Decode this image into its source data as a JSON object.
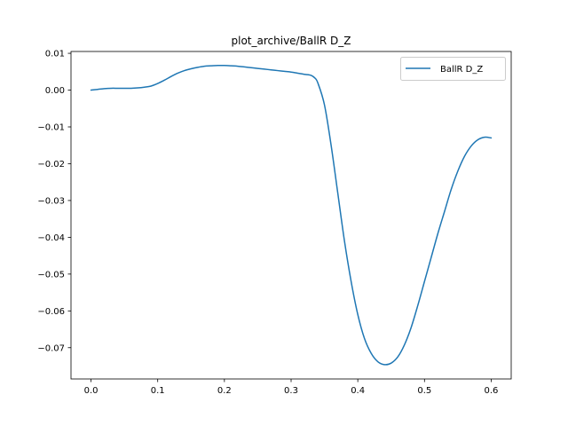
{
  "chart_data": {
    "type": "line",
    "title": "plot_archive/BallR D_Z",
    "xlabel": "",
    "ylabel": "",
    "xlim": [
      -0.03,
      0.63
    ],
    "ylim": [
      -0.0785,
      0.0105
    ],
    "x_ticks": [
      0.0,
      0.1,
      0.2,
      0.3,
      0.4,
      0.5,
      0.6
    ],
    "x_tick_labels": [
      "0.0",
      "0.1",
      "0.2",
      "0.3",
      "0.4",
      "0.5",
      "0.6"
    ],
    "y_ticks": [
      0.01,
      0.0,
      -0.01,
      -0.02,
      -0.03,
      -0.04,
      -0.05,
      -0.06,
      -0.07
    ],
    "y_tick_labels": [
      "0.01",
      "0.00",
      "−0.01",
      "−0.02",
      "−0.03",
      "−0.04",
      "−0.05",
      "−0.06",
      "−0.07"
    ],
    "grid": false,
    "legend": {
      "position": "top-right",
      "entries": [
        "BallR D_Z"
      ]
    },
    "series": [
      {
        "name": "BallR D_Z",
        "color": "#1f77b4",
        "x": [
          0.0,
          0.01,
          0.02,
          0.03,
          0.04,
          0.05,
          0.06,
          0.07,
          0.08,
          0.09,
          0.1,
          0.11,
          0.12,
          0.13,
          0.14,
          0.15,
          0.16,
          0.17,
          0.18,
          0.19,
          0.2,
          0.21,
          0.22,
          0.23,
          0.24,
          0.25,
          0.26,
          0.27,
          0.28,
          0.29,
          0.3,
          0.31,
          0.32,
          0.325,
          0.33,
          0.335,
          0.34,
          0.35,
          0.36,
          0.37,
          0.38,
          0.39,
          0.4,
          0.41,
          0.42,
          0.43,
          0.44,
          0.45,
          0.46,
          0.47,
          0.48,
          0.49,
          0.5,
          0.51,
          0.52,
          0.53,
          0.54,
          0.55,
          0.56,
          0.57,
          0.58,
          0.59,
          0.6
        ],
        "y": [
          0.0,
          0.0002,
          0.0004,
          0.0005,
          0.0005,
          0.0005,
          0.0005,
          0.0006,
          0.0008,
          0.0011,
          0.0018,
          0.0027,
          0.0037,
          0.0046,
          0.0053,
          0.0058,
          0.0062,
          0.0065,
          0.0066,
          0.0067,
          0.0067,
          0.0066,
          0.0065,
          0.0063,
          0.0061,
          0.0059,
          0.0057,
          0.0055,
          0.0053,
          0.0051,
          0.0049,
          0.0046,
          0.0043,
          0.0042,
          0.004,
          0.0034,
          0.002,
          -0.004,
          -0.015,
          -0.028,
          -0.041,
          -0.052,
          -0.061,
          -0.0675,
          -0.0715,
          -0.0738,
          -0.0746,
          -0.0742,
          -0.0725,
          -0.0692,
          -0.0645,
          -0.0585,
          -0.052,
          -0.0455,
          -0.039,
          -0.033,
          -0.027,
          -0.022,
          -0.018,
          -0.0152,
          -0.0135,
          -0.0128,
          -0.013
        ]
      }
    ]
  }
}
